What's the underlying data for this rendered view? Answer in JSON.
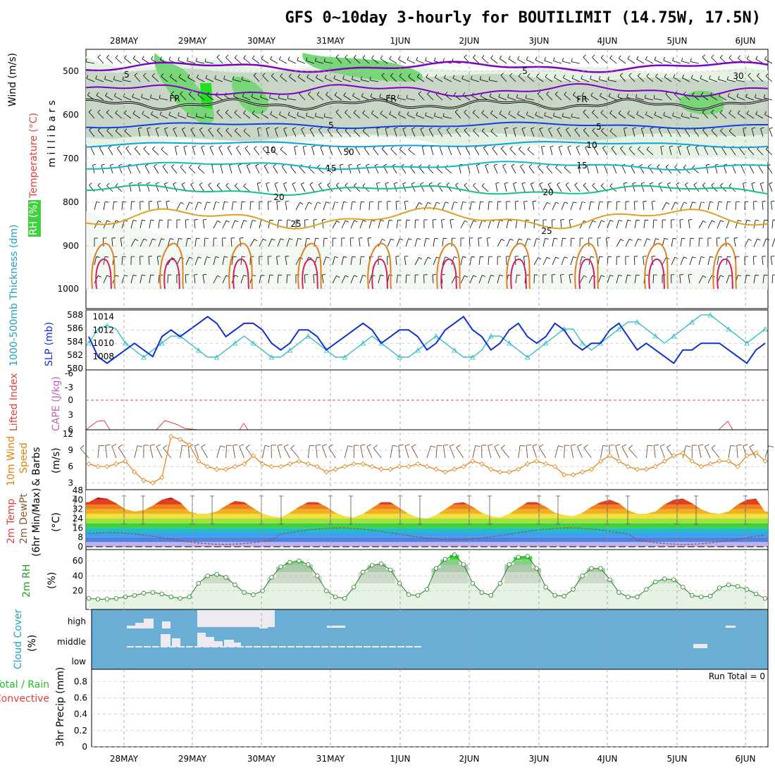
{
  "title": "GFS 0~10day 3-hourly for BOUTILIMIT (14.75W, 17.5N)",
  "dates": [
    "28MAY",
    "29MAY",
    "30MAY",
    "31MAY",
    "1JUN",
    "2JUN",
    "3JUN",
    "4JUN",
    "5JUN",
    "6JUN"
  ],
  "colors": {
    "temp25": "#e0a020",
    "temp20": "#10c090",
    "temp15": "#10b8c0",
    "temp10": "#10a0e0",
    "temp5": "#1040e0",
    "fr": "#000000",
    "wind5": "#8000c0",
    "rh": "#40d040",
    "slp": "#1030d0",
    "thick": "#20b8c0",
    "cape": "#e04040",
    "wind10": "#e08010",
    "cloud": "#6aaed6"
  },
  "panels": {
    "upper": {
      "ylabel_wind": "Wind (m/s)",
      "ylabel_temp": "Temperature (°C)",
      "ylabel_mb": "m i l l i b a r s",
      "ylabel_rh": "RH (%)",
      "ticks": [
        "500",
        "600",
        "700",
        "800",
        "900",
        "1000"
      ],
      "contour_labels": {
        "t25": "25",
        "t20": "20",
        "t15": "15",
        "t10": "10",
        "t5": "5",
        "fr": "FR",
        "w5": "5",
        "rh50": "50",
        "rh30": "30"
      }
    },
    "slp": {
      "ylabel_slp": "SLP (mb)",
      "ylabel_thick": "1000-500mb Thickness (dm)",
      "left_ticks": [
        "588",
        "586",
        "584",
        "582",
        "580"
      ],
      "right_ticks": [
        "1014",
        "1012",
        "1010",
        "1008"
      ]
    },
    "cape": {
      "ylabel_cape": "CAPE (J/kg)",
      "ylabel_li": "Lifted Index",
      "ticks": [
        "-3",
        "0",
        "3",
        "6"
      ]
    },
    "wind": {
      "ylabel1": "10m Wind",
      "ylabel2": "Speed",
      "ylabel3": "& Barbs",
      "ylabel4": "(m/s)",
      "ticks": [
        "12",
        "9",
        "6",
        "3"
      ]
    },
    "temp": {
      "ylabel1": "2m Temp",
      "ylabel2": "2m DewPt",
      "ylabel3": "(6hr Min/Max)",
      "ylabel4": "(°C)",
      "ticks": [
        "48",
        "40",
        "32",
        "24",
        "16",
        "8",
        "0"
      ]
    },
    "rh": {
      "ylabel": "2m RH",
      "unit": "(%)",
      "ticks": [
        "60",
        "40",
        "20"
      ]
    },
    "cloud": {
      "ylabel": "Cloud Cover",
      "unit": "(%)",
      "levels": [
        "high",
        "middle",
        "low"
      ]
    },
    "precip": {
      "ylabel1": "3hr Precip (mm)",
      "ylabel2": "Total / Rain",
      "ylabel3": "Convective",
      "ticks": [
        "0.8",
        "0.6",
        "0.4",
        "0.2",
        "0"
      ],
      "run_total": "Run Total = 0"
    }
  },
  "chart_data": [
    {
      "type": "line",
      "name": "SLP",
      "unit": "mb",
      "x_step_hours": 3,
      "values": [
        1011,
        1008,
        1007,
        1008,
        1009,
        1010,
        1009,
        1008,
        1011,
        1012,
        1011,
        1012,
        1013,
        1014,
        1013,
        1011,
        1012,
        1013,
        1013,
        1012,
        1010,
        1009,
        1010,
        1012,
        1012,
        1011,
        1009,
        1010,
        1011,
        1012,
        1013,
        1012,
        1010,
        1011,
        1012,
        1012,
        1011,
        1009,
        1010,
        1012,
        1013,
        1014,
        1012,
        1011,
        1009,
        1010,
        1012,
        1013,
        1011,
        1010,
        1011,
        1013,
        1012,
        1010,
        1009,
        1010,
        1010,
        1012,
        1013,
        1011,
        1009,
        1010,
        1009,
        1008,
        1007,
        1009,
        1009,
        1010,
        1010,
        1010,
        1009,
        1008,
        1007,
        1009,
        1010
      ]
    },
    {
      "type": "line",
      "name": "Thickness",
      "unit": "dm",
      "x_step_hours": 3,
      "values": [
        584,
        586,
        586.5,
        586,
        584,
        583,
        582,
        583,
        584,
        585,
        585,
        584,
        583,
        582,
        582,
        583,
        584,
        585,
        584,
        583,
        582,
        582,
        583,
        584,
        585,
        584,
        583,
        582,
        582,
        583,
        584,
        585,
        584,
        583,
        582,
        582,
        583,
        584,
        585,
        584,
        583,
        582,
        582,
        583,
        585,
        585,
        584,
        583,
        582,
        583,
        584,
        585,
        586,
        586,
        584,
        583,
        584,
        585,
        586,
        587,
        587,
        586,
        585,
        584,
        585,
        586,
        587,
        588,
        588,
        587,
        586,
        585,
        584,
        585,
        586
      ]
    },
    {
      "type": "line",
      "name": "10m wind speed",
      "unit": "m/s",
      "x_step_hours": 3,
      "values": [
        6.5,
        6,
        6,
        6.5,
        7,
        5,
        3.5,
        3,
        4,
        11.5,
        11,
        10,
        7,
        6,
        5.5,
        5.5,
        6,
        6.5,
        8,
        6.5,
        6,
        6,
        6.5,
        7,
        6.5,
        6,
        5,
        5.5,
        6,
        6.5,
        6.5,
        6,
        5.5,
        5.5,
        6,
        6,
        6.5,
        6,
        5.5,
        5,
        5.5,
        6,
        7,
        6.5,
        5.5,
        5,
        5,
        5.5,
        6.5,
        7,
        6.5,
        6,
        4.5,
        4.5,
        5,
        5.5,
        7,
        8,
        7,
        6,
        5.5,
        5.5,
        6,
        7,
        8,
        8.5,
        7,
        6,
        6.5,
        7,
        7,
        6,
        8,
        8.5,
        7
      ]
    },
    {
      "type": "area",
      "name": "2m Temp",
      "unit": "°C",
      "x_step_hours": 3,
      "values": [
        38,
        42,
        41,
        37,
        32,
        30,
        31,
        35,
        40,
        42,
        38,
        30,
        28,
        28,
        30,
        35,
        39,
        38,
        33,
        28,
        26,
        25,
        29,
        34,
        38,
        38,
        34,
        29,
        26,
        25,
        28,
        33,
        38,
        38,
        33,
        28,
        25,
        24,
        27,
        32,
        37,
        38,
        34,
        29,
        26,
        25,
        28,
        33,
        38,
        38,
        34,
        29,
        27,
        26,
        29,
        34,
        38,
        40,
        37,
        31,
        28,
        28,
        30,
        36,
        40,
        41,
        37,
        32,
        29,
        28,
        30,
        36,
        40,
        41,
        30
      ]
    },
    {
      "type": "area",
      "name": "2m RH",
      "unit": "%",
      "x_step_hours": 3,
      "values": [
        10,
        9,
        9,
        10,
        12,
        14,
        17,
        18,
        16,
        12,
        10,
        12,
        30,
        40,
        42,
        38,
        28,
        18,
        15,
        20,
        38,
        52,
        58,
        60,
        55,
        40,
        20,
        12,
        10,
        25,
        45,
        54,
        56,
        48,
        30,
        15,
        14,
        22,
        50,
        62,
        68,
        55,
        30,
        18,
        14,
        30,
        55,
        65,
        66,
        50,
        25,
        14,
        13,
        22,
        40,
        50,
        50,
        35,
        18,
        12,
        12,
        22,
        32,
        36,
        35,
        25,
        14,
        12,
        13,
        24,
        28,
        26,
        22,
        16,
        10
      ]
    },
    {
      "type": "area",
      "name": "3hr Precip",
      "unit": "mm",
      "ylim": [
        0,
        0.8
      ],
      "values": []
    }
  ]
}
